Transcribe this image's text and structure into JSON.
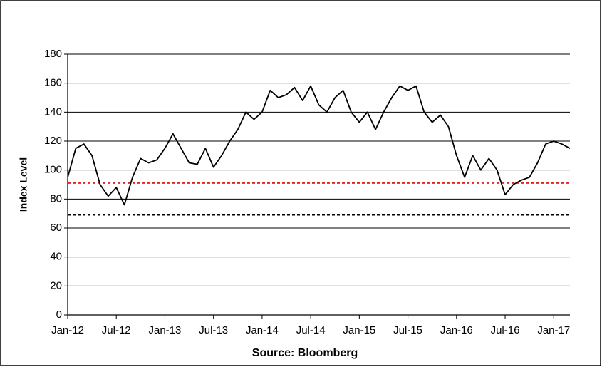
{
  "chart_data": {
    "type": "line",
    "y_axis_label": "Index Level",
    "x_axis_label": "Source: Bloomberg",
    "categories": [
      "Jan-12",
      null,
      null,
      null,
      null,
      null,
      "Jul-12",
      null,
      null,
      null,
      null,
      null,
      "Jan-13",
      null,
      null,
      null,
      null,
      null,
      "Jul-13",
      null,
      null,
      null,
      null,
      null,
      "Jan-14",
      null,
      null,
      null,
      null,
      null,
      "Jul-14",
      null,
      null,
      null,
      null,
      null,
      "Jan-15",
      null,
      null,
      null,
      null,
      null,
      "Jul-15",
      null,
      null,
      null,
      null,
      null,
      "Jan-16",
      null,
      null,
      null,
      null,
      null,
      "Jul-16",
      null,
      null,
      null,
      null,
      null,
      "Jan-17",
      null,
      null
    ],
    "series": [
      {
        "color": "#000000",
        "values": [
          95,
          115,
          118,
          110,
          90,
          82,
          88,
          76,
          95,
          108,
          105,
          107,
          115,
          125,
          115,
          105,
          104,
          115,
          102,
          110,
          120,
          128,
          140,
          135,
          140,
          155,
          150,
          152,
          157,
          148,
          158,
          145,
          140,
          150,
          155,
          140,
          133,
          140,
          128,
          140,
          150,
          158,
          155,
          158,
          140,
          133,
          138,
          130,
          110,
          95,
          110,
          100,
          108,
          100,
          83,
          90,
          93,
          95,
          105,
          118,
          120,
          118,
          115
        ]
      }
    ],
    "reference_lines": [
      {
        "value": 91,
        "color": "#e00000"
      },
      {
        "value": 69,
        "color": "#000000"
      }
    ],
    "ylim": [
      0,
      180
    ],
    "yticks": [
      0,
      20,
      40,
      60,
      80,
      100,
      120,
      140,
      160,
      180
    ],
    "grid": true
  }
}
